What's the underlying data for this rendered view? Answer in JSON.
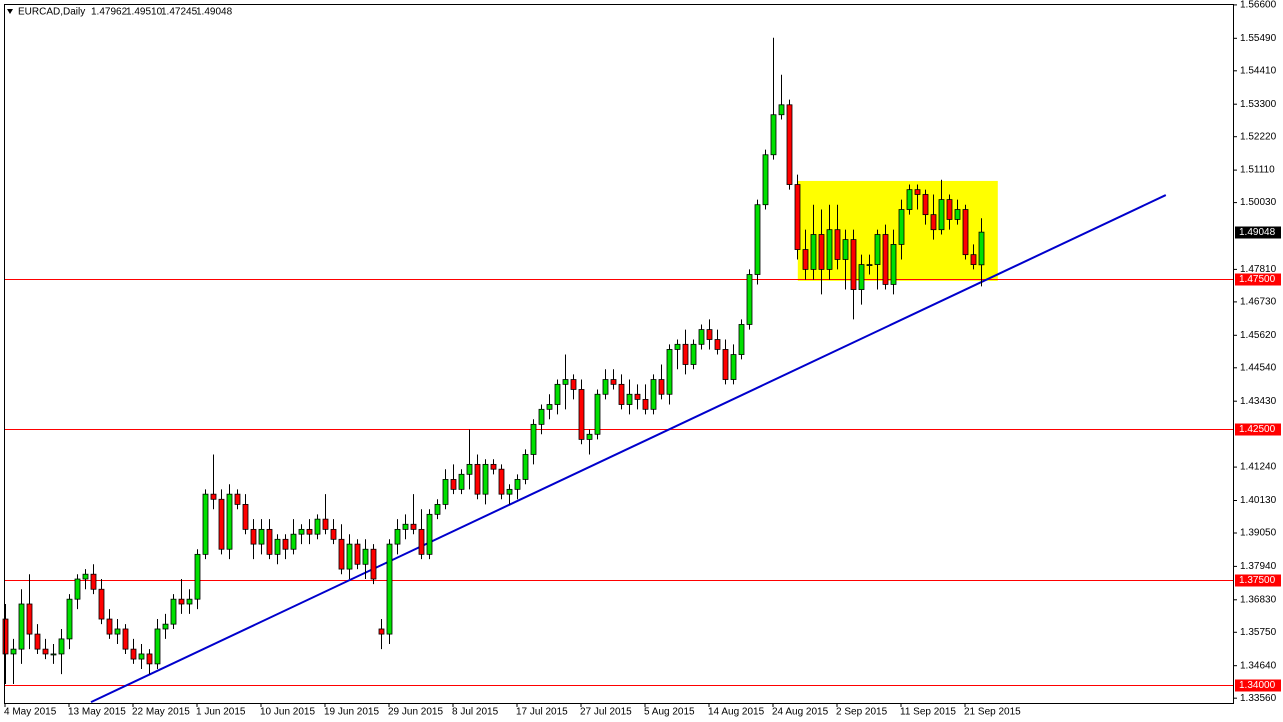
{
  "chart_data": {
    "type": "candlestick",
    "title": "EURCAD,Daily",
    "last_bar_labels": [
      "1.47962",
      "1.49510",
      "1.47245",
      "1.49048"
    ],
    "categories": [
      "4 May 2015",
      null,
      null,
      null,
      null,
      null,
      null,
      null,
      "13 May 2015",
      null,
      null,
      null,
      null,
      null,
      null,
      null,
      "22 May 2015",
      null,
      null,
      null,
      null,
      null,
      null,
      null,
      "1 Jun 2015",
      null,
      null,
      null,
      null,
      null,
      null,
      null,
      "10 Jun 2015",
      null,
      null,
      null,
      null,
      null,
      null,
      null,
      "19 Jun 2015",
      null,
      null,
      null,
      null,
      null,
      null,
      null,
      "29 Jun 2015",
      null,
      null,
      null,
      null,
      null,
      null,
      null,
      "8 Jul 2015",
      null,
      null,
      null,
      null,
      null,
      null,
      null,
      "17 Jul 2015",
      null,
      null,
      null,
      null,
      null,
      null,
      null,
      "27 Jul 2015",
      null,
      null,
      null,
      null,
      null,
      null,
      null,
      "5 Aug 2015",
      null,
      null,
      null,
      null,
      null,
      null,
      null,
      "14 Aug 2015",
      null,
      null,
      null,
      null,
      null,
      null,
      null,
      "24 Aug 2015",
      null,
      null,
      null,
      null,
      null,
      null,
      null,
      "2 Sep 2015",
      null,
      null,
      null,
      null,
      null,
      null,
      null,
      "11 Sep 2015",
      null,
      null,
      null,
      null,
      null,
      null,
      null,
      "21 Sep 2015",
      null,
      null
    ],
    "open": [
      1.3619,
      1.3503,
      1.3519,
      1.3669,
      1.3569,
      1.3519,
      1.3503,
      1.3503,
      1.3553,
      1.3685,
      1.3752,
      1.3768,
      1.3718,
      1.3619,
      1.3569,
      1.3586,
      1.3519,
      1.3486,
      1.3503,
      1.347,
      1.3586,
      1.3602,
      1.3685,
      1.3669,
      1.3685,
      1.3834,
      1.4034,
      1.4017,
      1.3851,
      1.4034,
      1.4,
      1.3917,
      1.3868,
      1.3917,
      1.3834,
      1.3884,
      1.3851,
      1.3901,
      1.3917,
      1.3901,
      1.3951,
      1.3917,
      1.3884,
      1.3785,
      1.3868,
      1.3801,
      1.3851,
      1.3586,
      1.3569,
      1.3868,
      1.3917,
      1.3934,
      1.3917,
      1.3834,
      1.3967,
      1.4,
      1.4083,
      1.405,
      1.41,
      1.4133,
      1.4034,
      1.4133,
      1.4117,
      1.4034,
      1.405,
      1.4083,
      1.4166,
      1.4266,
      1.4316,
      1.4332,
      1.4399,
      1.4415,
      1.4382,
      1.4216,
      1.4233,
      1.4366,
      1.4415,
      1.4399,
      1.4332,
      1.4366,
      1.4349,
      1.4316,
      1.4415,
      1.4366,
      1.4515,
      1.4532,
      1.4465,
      1.4532,
      1.4581,
      1.4548,
      1.4515,
      1.4415,
      1.4498,
      1.4598,
      1.4764,
      1.4996,
      1.5162,
      1.5295,
      1.5328,
      1.5063,
      1.4847,
      1.4781,
      1.4897,
      1.4781,
      1.4913,
      1.4814,
      1.488,
      1.4714,
      1.4797,
      1.4797,
      1.4897,
      1.4731,
      1.4864,
      1.498,
      1.5046,
      1.503,
      1.4963,
      1.4913,
      1.5013,
      1.4947,
      1.498,
      1.483,
      1.47962
    ],
    "high": [
      1.3669,
      1.3553,
      1.3718,
      1.3768,
      1.3602,
      1.3553,
      1.3536,
      1.3586,
      1.3702,
      1.3768,
      1.3785,
      1.3801,
      1.3752,
      1.3652,
      1.3619,
      1.3602,
      1.3553,
      1.3536,
      1.3519,
      1.3619,
      1.3636,
      1.3702,
      1.3752,
      1.3718,
      1.3851,
      1.405,
      1.4166,
      1.405,
      1.4067,
      1.405,
      1.4034,
      1.3951,
      1.3951,
      1.3951,
      1.3901,
      1.3901,
      1.3951,
      1.3934,
      1.3951,
      1.3967,
      1.4034,
      1.3951,
      1.3934,
      1.3901,
      1.3884,
      1.3884,
      1.3868,
      1.3619,
      1.3884,
      1.3951,
      1.3967,
      1.4034,
      1.3984,
      1.3984,
      1.4017,
      1.4117,
      1.4133,
      1.4117,
      1.4249,
      1.4166,
      1.415,
      1.415,
      1.4133,
      1.4067,
      1.41,
      1.4183,
      1.4283,
      1.4332,
      1.4366,
      1.4415,
      1.4498,
      1.4432,
      1.4415,
      1.4249,
      1.4382,
      1.4449,
      1.4449,
      1.4432,
      1.4415,
      1.4399,
      1.4399,
      1.4432,
      1.4465,
      1.4532,
      1.4548,
      1.4581,
      1.4548,
      1.4598,
      1.4615,
      1.4581,
      1.4548,
      1.4532,
      1.4615,
      1.4781,
      1.5013,
      1.5179,
      1.5551,
      1.5428,
      1.5345,
      1.5096,
      1.4913,
      1.4996,
      1.498,
      1.4996,
      1.4996,
      1.4913,
      1.4913,
      1.483,
      1.483,
      1.4913,
      1.493,
      1.4913,
      1.5013,
      1.5063,
      1.5063,
      1.5046,
      1.503,
      1.5079,
      1.503,
      1.5013,
      1.4996,
      1.4864,
      1.4951
    ],
    "low": [
      1.3403,
      1.3403,
      1.347,
      1.3519,
      1.3503,
      1.3486,
      1.347,
      1.3436,
      1.3519,
      1.3652,
      1.3718,
      1.3702,
      1.3602,
      1.3553,
      1.3536,
      1.3503,
      1.347,
      1.3453,
      1.3436,
      1.3453,
      1.3553,
      1.3586,
      1.3636,
      1.3636,
      1.3652,
      1.3818,
      1.3984,
      1.3834,
      1.3818,
      1.3984,
      1.3901,
      1.3818,
      1.3834,
      1.3818,
      1.3801,
      1.3818,
      1.3834,
      1.3868,
      1.3868,
      1.3884,
      1.3901,
      1.3868,
      1.3768,
      1.3752,
      1.3785,
      1.3752,
      1.3735,
      1.3519,
      1.3536,
      1.3834,
      1.3884,
      1.3901,
      1.3818,
      1.3818,
      1.3951,
      1.3984,
      1.4034,
      1.4034,
      1.405,
      1.4017,
      1.4,
      1.41,
      1.4017,
      1.4,
      1.4017,
      1.4067,
      1.4133,
      1.4233,
      1.4283,
      1.4299,
      1.4316,
      1.4349,
      1.42,
      1.4166,
      1.4216,
      1.4349,
      1.4382,
      1.4316,
      1.4299,
      1.4316,
      1.4299,
      1.4299,
      1.4349,
      1.4332,
      1.4449,
      1.4432,
      1.4449,
      1.4515,
      1.4515,
      1.4498,
      1.4399,
      1.4399,
      1.4482,
      1.4581,
      1.4731,
      1.498,
      1.5146,
      1.5279,
      1.5046,
      1.4814,
      1.4747,
      1.4747,
      1.4698,
      1.4747,
      1.4781,
      1.4714,
      1.4615,
      1.4664,
      1.4764,
      1.4714,
      1.4714,
      1.4698,
      1.4814,
      1.4963,
      1.498,
      1.493,
      1.488,
      1.4897,
      1.4913,
      1.493,
      1.4814,
      1.4781,
      1.47245
    ],
    "close": [
      1.3503,
      1.3519,
      1.3669,
      1.3569,
      1.3519,
      1.3503,
      1.3503,
      1.3553,
      1.3685,
      1.3752,
      1.3768,
      1.3718,
      1.3619,
      1.3569,
      1.3586,
      1.3519,
      1.3486,
      1.3503,
      1.347,
      1.3586,
      1.3602,
      1.3685,
      1.3669,
      1.3685,
      1.3834,
      1.4034,
      1.4017,
      1.3851,
      1.4034,
      1.4,
      1.3917,
      1.3868,
      1.3917,
      1.3834,
      1.3884,
      1.3851,
      1.3901,
      1.3917,
      1.3901,
      1.3951,
      1.3917,
      1.3884,
      1.3785,
      1.3868,
      1.3801,
      1.3851,
      1.3752,
      1.3569,
      1.3868,
      1.3917,
      1.3934,
      1.3917,
      1.3834,
      1.3967,
      1.4,
      1.4083,
      1.405,
      1.41,
      1.4133,
      1.4034,
      1.4133,
      1.4117,
      1.4034,
      1.405,
      1.4083,
      1.4166,
      1.4266,
      1.4316,
      1.4332,
      1.4399,
      1.4415,
      1.4382,
      1.4216,
      1.4233,
      1.4366,
      1.4415,
      1.4399,
      1.4332,
      1.4366,
      1.4349,
      1.4316,
      1.4415,
      1.4366,
      1.4515,
      1.4532,
      1.4465,
      1.4532,
      1.4581,
      1.4548,
      1.4515,
      1.4415,
      1.4498,
      1.4598,
      1.4764,
      1.4996,
      1.5162,
      1.5295,
      1.5328,
      1.5063,
      1.4847,
      1.4781,
      1.4897,
      1.4781,
      1.4913,
      1.4814,
      1.488,
      1.4714,
      1.4797,
      1.4797,
      1.4897,
      1.4731,
      1.4864,
      1.498,
      1.5046,
      1.503,
      1.4963,
      1.4913,
      1.5013,
      1.4947,
      1.498,
      1.483,
      1.4797,
      1.49048
    ],
    "up_color": "#00e000",
    "down_color": "#ff0000",
    "ylim": [
      1.334,
      1.5663
    ],
    "yticks": [
      {
        "value": 1.566,
        "label": "1.56600"
      },
      {
        "value": 1.5549,
        "label": "1.55490"
      },
      {
        "value": 1.5441,
        "label": "1.54410"
      },
      {
        "value": 1.533,
        "label": "1.53300"
      },
      {
        "value": 1.5222,
        "label": "1.52220"
      },
      {
        "value": 1.5111,
        "label": "1.51110"
      },
      {
        "value": 1.5003,
        "label": "1.50030"
      },
      {
        "value": 1.4781,
        "label": "1.47810"
      },
      {
        "value": 1.4673,
        "label": "1.46730"
      },
      {
        "value": 1.4562,
        "label": "1.45620"
      },
      {
        "value": 1.4454,
        "label": "1.44540"
      },
      {
        "value": 1.4343,
        "label": "1.43430"
      },
      {
        "value": 1.4124,
        "label": "1.41240"
      },
      {
        "value": 1.4013,
        "label": "1.40130"
      },
      {
        "value": 1.3905,
        "label": "1.39050"
      },
      {
        "value": 1.3794,
        "label": "1.37940"
      },
      {
        "value": 1.3683,
        "label": "1.36830"
      },
      {
        "value": 1.3575,
        "label": "1.35750"
      },
      {
        "value": 1.3464,
        "label": "1.34640"
      },
      {
        "value": 1.3356,
        "label": "1.33560"
      }
    ],
    "levels": [
      {
        "value": 1.475,
        "label": "1.47500"
      },
      {
        "value": 1.425,
        "label": "1.42500"
      },
      {
        "value": 1.375,
        "label": "1.37500"
      },
      {
        "value": 1.34,
        "label": "1.34000"
      }
    ],
    "level_color": "#ff0000",
    "trendline": {
      "color": "#0000cc",
      "from": [
        10.75,
        1.3343
      ],
      "to": [
        145.1,
        1.5028
      ]
    },
    "rectangle": {
      "color": "#ffff00",
      "bars": [
        99.1,
        124.1
      ],
      "prices": [
        1.4743,
        1.5075
      ]
    }
  }
}
